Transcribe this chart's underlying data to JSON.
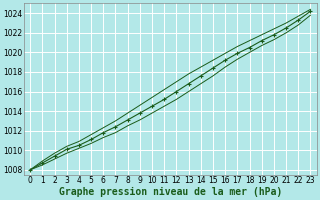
{
  "xlabel": "Graphe pression niveau de la mer (hPa)",
  "ylabel": "",
  "bg_color": "#b3e8e8",
  "grid_color": "#ffffff",
  "line_color": "#1a5c1a",
  "ylim": [
    1007.5,
    1025.0
  ],
  "xlim": [
    -0.5,
    23.5
  ],
  "yticks": [
    1008,
    1010,
    1012,
    1014,
    1016,
    1018,
    1020,
    1022,
    1024
  ],
  "xticks": [
    0,
    1,
    2,
    3,
    4,
    5,
    6,
    7,
    8,
    9,
    10,
    11,
    12,
    13,
    14,
    15,
    16,
    17,
    18,
    19,
    20,
    21,
    22,
    23
  ],
  "x": [
    0,
    1,
    2,
    3,
    4,
    5,
    6,
    7,
    8,
    9,
    10,
    11,
    12,
    13,
    14,
    15,
    16,
    17,
    18,
    19,
    20,
    21,
    22,
    23
  ],
  "y_main": [
    1008.0,
    1008.7,
    1009.4,
    1010.1,
    1010.5,
    1011.1,
    1011.8,
    1012.4,
    1013.1,
    1013.8,
    1014.5,
    1015.2,
    1016.0,
    1016.8,
    1017.6,
    1018.4,
    1019.2,
    1019.9,
    1020.5,
    1021.2,
    1021.8,
    1022.5,
    1023.3,
    1024.2
  ],
  "y_upper": [
    1008.0,
    1008.9,
    1009.7,
    1010.4,
    1010.9,
    1011.6,
    1012.3,
    1013.0,
    1013.8,
    1014.6,
    1015.4,
    1016.2,
    1017.0,
    1017.8,
    1018.5,
    1019.2,
    1019.9,
    1020.6,
    1021.2,
    1021.8,
    1022.4,
    1023.0,
    1023.7,
    1024.4
  ],
  "y_lower": [
    1008.0,
    1008.5,
    1009.1,
    1009.7,
    1010.2,
    1010.7,
    1011.3,
    1011.8,
    1012.5,
    1013.1,
    1013.8,
    1014.5,
    1015.2,
    1016.0,
    1016.8,
    1017.6,
    1018.5,
    1019.3,
    1020.0,
    1020.7,
    1021.3,
    1022.0,
    1022.8,
    1023.8
  ],
  "tick_fontsize": 5.5,
  "label_fontsize": 7,
  "label_fontweight": "bold"
}
